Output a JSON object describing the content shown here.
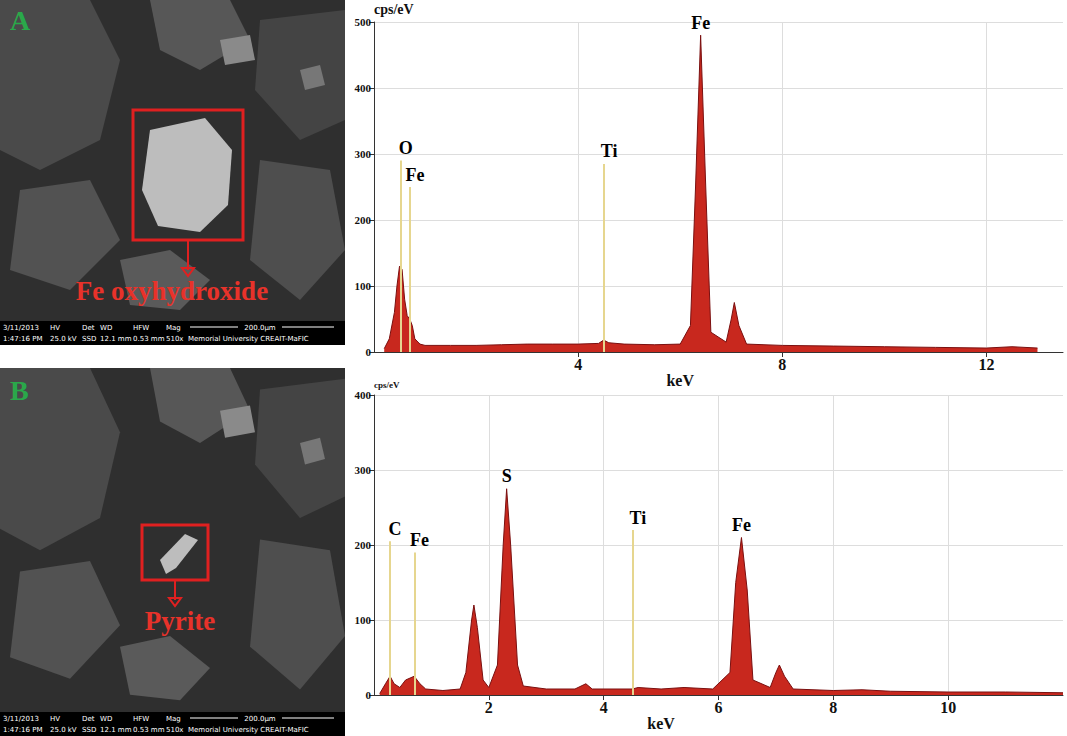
{
  "chart_data": [
    {
      "type": "area",
      "x_label": "keV",
      "y_label": "cps/eV",
      "x": [
        0.2,
        0.3,
        0.4,
        0.45,
        0.5,
        0.55,
        0.6,
        0.65,
        0.7,
        0.75,
        0.8,
        0.9,
        1.0,
        1.5,
        2.0,
        2.5,
        3.0,
        3.5,
        4.0,
        4.4,
        4.5,
        4.6,
        4.9,
        5.5,
        6.0,
        6.2,
        6.3,
        6.4,
        6.5,
        6.6,
        6.9,
        7.0,
        7.06,
        7.15,
        7.3,
        8.0,
        9.0,
        10.0,
        11.0,
        12.0,
        12.5,
        13.0
      ],
      "values": [
        5,
        20,
        60,
        100,
        130,
        125,
        80,
        55,
        50,
        40,
        20,
        12,
        10,
        10,
        10,
        11,
        12,
        12,
        12,
        13,
        18,
        14,
        12,
        11,
        12,
        40,
        250,
        480,
        250,
        30,
        15,
        50,
        75,
        40,
        12,
        10,
        9,
        8,
        7,
        6,
        8,
        6
      ],
      "color": "#c8281e",
      "xlim": [
        0,
        13.5
      ],
      "xticks": [
        4,
        8,
        12
      ],
      "ylim": [
        0,
        500
      ],
      "yticks": [
        0,
        100,
        200,
        300,
        400,
        500
      ],
      "grid": true,
      "element_lines": [
        {
          "label": "O",
          "x": 0.525,
          "y": 290
        },
        {
          "label": "Fe",
          "x": 0.705,
          "y": 250
        },
        {
          "label": "Ti",
          "x": 4.51,
          "y": 285
        }
      ],
      "peak_labels": [
        {
          "label": "Fe",
          "x": 6.4,
          "y": 480
        }
      ]
    },
    {
      "type": "area",
      "x_label": "keV",
      "y_label": "cps/eV",
      "x": [
        0.1,
        0.2,
        0.28,
        0.35,
        0.45,
        0.55,
        0.7,
        0.8,
        0.9,
        1.2,
        1.5,
        1.6,
        1.7,
        1.74,
        1.8,
        1.9,
        2.0,
        2.15,
        2.25,
        2.31,
        2.38,
        2.5,
        2.6,
        3.0,
        3.5,
        3.69,
        3.8,
        4.5,
        4.6,
        5.0,
        5.4,
        5.9,
        6.2,
        6.3,
        6.4,
        6.5,
        6.6,
        6.9,
        7.0,
        7.06,
        7.15,
        7.3,
        8.0,
        8.5,
        9.0,
        10.0,
        11.0,
        12.0
      ],
      "values": [
        2,
        15,
        25,
        15,
        10,
        20,
        25,
        15,
        8,
        6,
        8,
        30,
        100,
        120,
        90,
        20,
        10,
        40,
        200,
        275,
        200,
        40,
        12,
        8,
        8,
        15,
        8,
        8,
        10,
        8,
        10,
        8,
        30,
        150,
        210,
        140,
        20,
        10,
        30,
        40,
        25,
        8,
        6,
        7,
        5,
        4,
        4,
        3
      ],
      "color": "#c8281e",
      "xlim": [
        0,
        12
      ],
      "xticks": [
        2,
        4,
        6,
        8,
        10
      ],
      "ylim": [
        0,
        400
      ],
      "yticks": [
        0,
        100,
        200,
        300,
        400
      ],
      "grid": true,
      "element_lines": [
        {
          "label": "C",
          "x": 0.277,
          "y": 205
        },
        {
          "label": "Fe",
          "x": 0.705,
          "y": 190
        },
        {
          "label": "Ti",
          "x": 4.51,
          "y": 220
        }
      ],
      "peak_labels": [
        {
          "label": "S",
          "x": 2.31,
          "y": 275
        },
        {
          "label": "Fe",
          "x": 6.4,
          "y": 210
        }
      ]
    }
  ],
  "images": [
    {
      "letter": "A",
      "label": "Fe oxyhydroxide",
      "info_bar": {
        "headers": [
          "3/11/2013",
          "HV",
          "Det",
          "WD",
          "HFW",
          "Mag"
        ],
        "values": [
          "1:47:16 PM",
          "25.0 kV",
          "SSD",
          "12.1 mm",
          "0.53 mm",
          "510x"
        ],
        "scale": "200.0µm",
        "credit": "Memorial University CREAIT-MaFIC"
      }
    },
    {
      "letter": "B",
      "label": "Pyrite",
      "info_bar": {
        "headers": [
          "3/11/2013",
          "HV",
          "Det",
          "WD",
          "HFW",
          "Mag"
        ],
        "values": [
          "1:47:16 PM",
          "25.0 kV",
          "SSD",
          "12.1 mm",
          "0.53 mm",
          "510x"
        ],
        "scale": "200.0µm",
        "credit": "Memorial University CREAIT-MaFIC"
      }
    }
  ]
}
